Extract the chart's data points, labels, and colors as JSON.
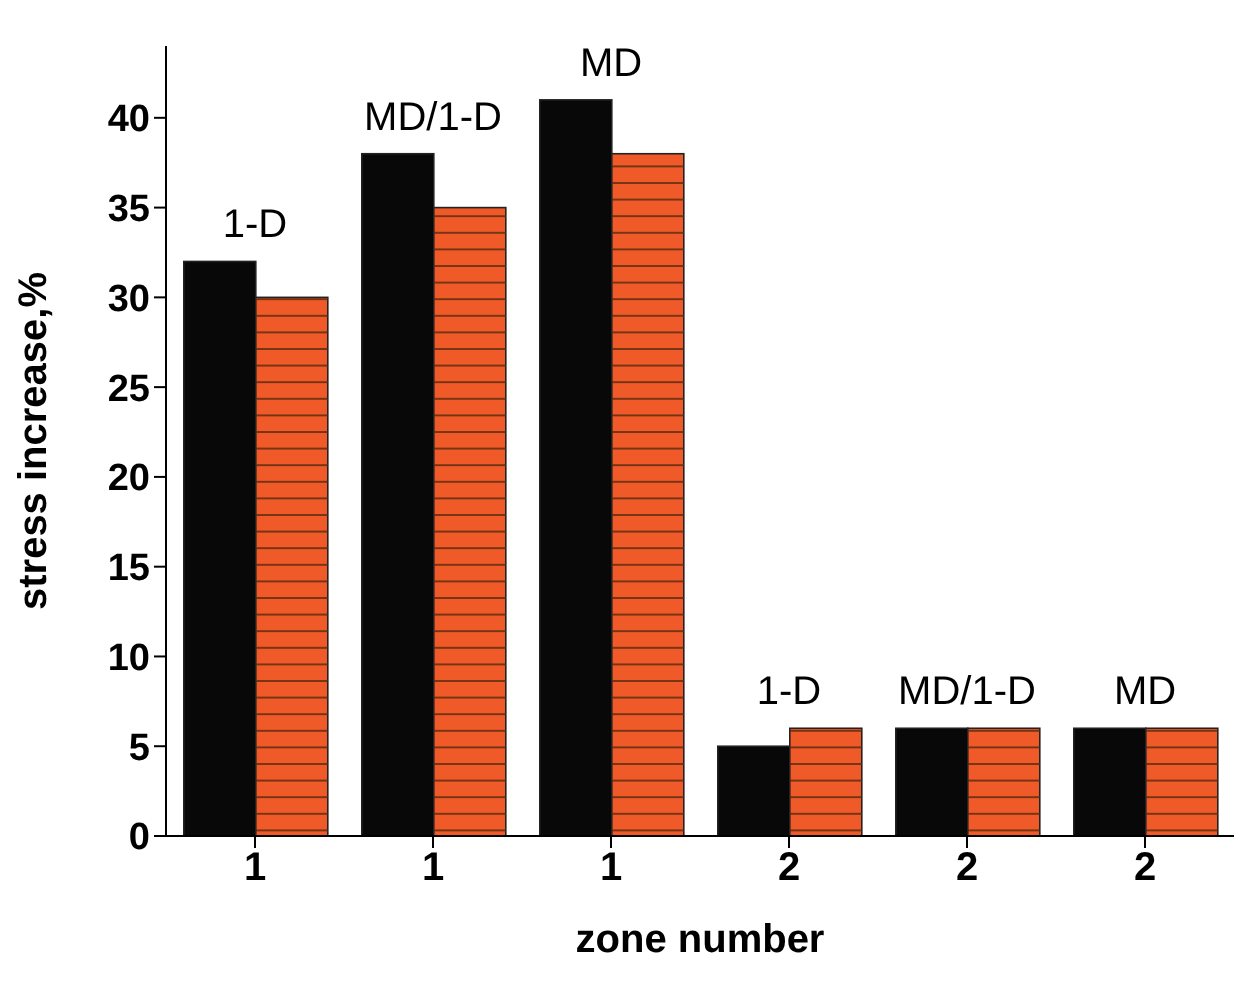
{
  "chart_data": {
    "type": "bar",
    "xlabel": "zone number",
    "ylabel": "stress increase,%",
    "categories": [
      "1",
      "1",
      "1",
      "2",
      "2",
      "2"
    ],
    "series": [
      {
        "color": "#080808",
        "values": [
          32,
          38,
          41,
          5,
          6,
          6
        ]
      },
      {
        "color": "#f05a28",
        "values": [
          30,
          35,
          38,
          6,
          6,
          6
        ]
      }
    ],
    "ylim": [
      0,
      44
    ],
    "yticks": [
      0,
      5,
      10,
      15,
      20,
      25,
      30,
      35,
      40
    ],
    "annotations": [
      "1-D",
      "MD/1-D",
      "MD",
      "1-D",
      "MD/1-D",
      "MD"
    ],
    "grid": false,
    "legend": false
  }
}
